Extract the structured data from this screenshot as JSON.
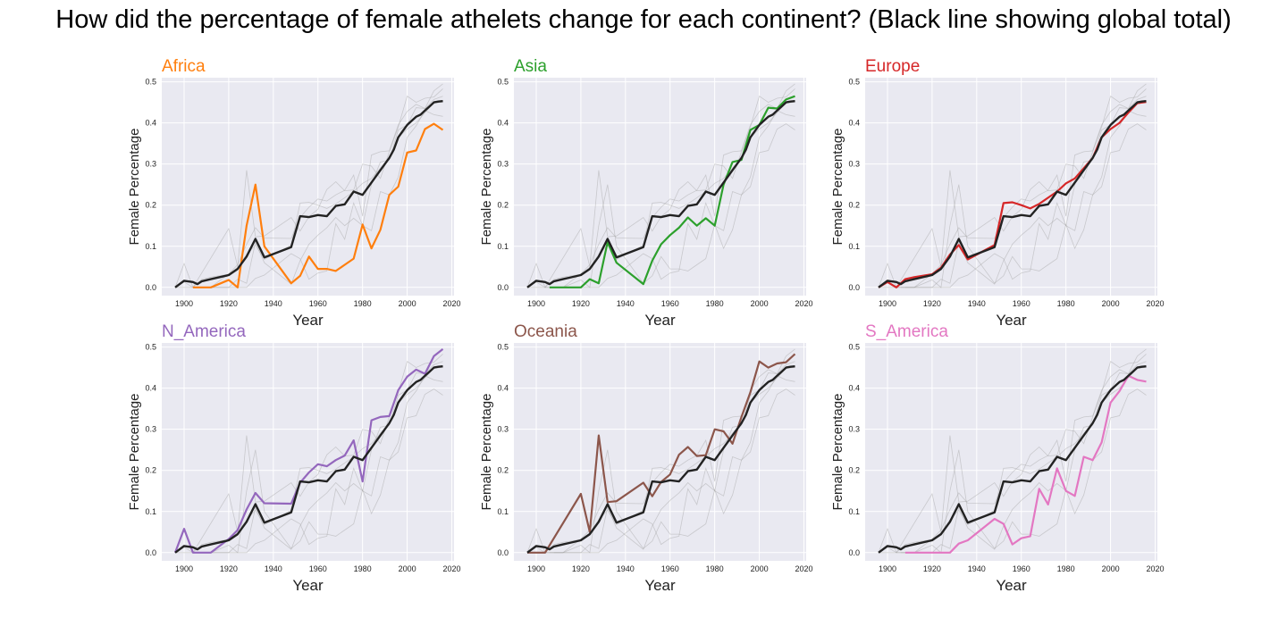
{
  "title": "How did the percentage of female athelets change for each continent? (Black line showing global total)",
  "chart_data": {
    "type": "line",
    "xlabel": "Year",
    "ylabel": "Female Percentage",
    "xlim": [
      1890,
      2021
    ],
    "ylim": [
      -0.02,
      0.51
    ],
    "xticks": [
      1900,
      1920,
      1940,
      1960,
      1980,
      2000,
      2020
    ],
    "yticks": [
      0.0,
      0.1,
      0.2,
      0.3,
      0.4,
      0.5
    ],
    "grid": true,
    "background": "#e9e9f1",
    "global": {
      "name": "Global",
      "color": "#222222",
      "x": [
        1896,
        1900,
        1904,
        1906,
        1908,
        1912,
        1920,
        1924,
        1928,
        1932,
        1936,
        1948,
        1952,
        1956,
        1960,
        1964,
        1968,
        1972,
        1976,
        1980,
        1984,
        1988,
        1992,
        1994,
        1996,
        1998,
        2000,
        2002,
        2004,
        2006,
        2008,
        2010,
        2012,
        2014,
        2016
      ],
      "y": [
        0.0,
        0.016,
        0.013,
        0.008,
        0.015,
        0.02,
        0.03,
        0.045,
        0.075,
        0.118,
        0.073,
        0.098,
        0.173,
        0.171,
        0.176,
        0.173,
        0.198,
        0.202,
        0.233,
        0.225,
        0.255,
        0.285,
        0.315,
        0.335,
        0.365,
        0.38,
        0.395,
        0.405,
        0.415,
        0.42,
        0.43,
        0.44,
        0.45,
        0.452,
        0.453
      ]
    },
    "panels": [
      {
        "name": "Africa",
        "color": "#ff7f0e",
        "x": [
          1904,
          1908,
          1912,
          1920,
          1924,
          1928,
          1932,
          1936,
          1948,
          1952,
          1956,
          1960,
          1964,
          1968,
          1972,
          1976,
          1980,
          1984,
          1988,
          1992,
          1996,
          2000,
          2004,
          2008,
          2012,
          2016
        ],
        "y": [
          0.0,
          0.0,
          0.0,
          0.018,
          0.0,
          0.15,
          0.25,
          0.1,
          0.01,
          0.028,
          0.075,
          0.045,
          0.045,
          0.04,
          0.055,
          0.07,
          0.153,
          0.095,
          0.14,
          0.225,
          0.245,
          0.328,
          0.333,
          0.385,
          0.398,
          0.383
        ]
      },
      {
        "name": "Asia",
        "color": "#2ca02c",
        "x": [
          1906,
          1912,
          1920,
          1924,
          1928,
          1932,
          1936,
          1948,
          1952,
          1956,
          1960,
          1964,
          1968,
          1972,
          1976,
          1980,
          1984,
          1988,
          1992,
          1996,
          2000,
          2004,
          2008,
          2012,
          2016
        ],
        "y": [
          0.0,
          0.0,
          0.0,
          0.02,
          0.01,
          0.11,
          0.06,
          0.008,
          0.065,
          0.105,
          0.127,
          0.145,
          0.17,
          0.15,
          0.168,
          0.15,
          0.25,
          0.305,
          0.31,
          0.383,
          0.395,
          0.437,
          0.435,
          0.457,
          0.465
        ]
      },
      {
        "name": "Europe",
        "color": "#d62728",
        "x": [
          1896,
          1900,
          1904,
          1908,
          1912,
          1920,
          1924,
          1928,
          1932,
          1936,
          1948,
          1952,
          1956,
          1960,
          1964,
          1968,
          1972,
          1976,
          1980,
          1984,
          1988,
          1992,
          1996,
          2000,
          2004,
          2008,
          2012,
          2016
        ],
        "y": [
          0.0,
          0.013,
          0.0,
          0.02,
          0.025,
          0.032,
          0.048,
          0.08,
          0.103,
          0.068,
          0.103,
          0.205,
          0.207,
          0.2,
          0.192,
          0.203,
          0.218,
          0.233,
          0.253,
          0.265,
          0.29,
          0.315,
          0.365,
          0.385,
          0.4,
          0.425,
          0.448,
          0.451
        ]
      },
      {
        "name": "N_America",
        "color": "#9467bd",
        "x": [
          1896,
          1900,
          1904,
          1908,
          1912,
          1920,
          1924,
          1928,
          1932,
          1936,
          1948,
          1952,
          1956,
          1960,
          1964,
          1968,
          1972,
          1976,
          1980,
          1984,
          1988,
          1992,
          1996,
          2000,
          2004,
          2008,
          2012,
          2016
        ],
        "y": [
          0.0,
          0.058,
          0.0,
          0.0,
          0.0,
          0.033,
          0.055,
          0.105,
          0.145,
          0.12,
          0.119,
          0.17,
          0.195,
          0.215,
          0.21,
          0.225,
          0.236,
          0.273,
          0.173,
          0.322,
          0.33,
          0.332,
          0.395,
          0.428,
          0.445,
          0.435,
          0.478,
          0.495
        ]
      },
      {
        "name": "Oceania",
        "color": "#8c564b",
        "x": [
          1896,
          1900,
          1904,
          1920,
          1924,
          1928,
          1932,
          1936,
          1948,
          1952,
          1956,
          1960,
          1964,
          1968,
          1972,
          1976,
          1980,
          1984,
          1988,
          1992,
          1996,
          2000,
          2004,
          2008,
          2012,
          2016
        ],
        "y": [
          0.0,
          0.0,
          0.0,
          0.143,
          0.05,
          0.285,
          0.123,
          0.125,
          0.17,
          0.137,
          0.172,
          0.19,
          0.238,
          0.257,
          0.235,
          0.237,
          0.3,
          0.295,
          0.265,
          0.33,
          0.39,
          0.465,
          0.45,
          0.46,
          0.463,
          0.483
        ]
      },
      {
        "name": "S_America",
        "color": "#e377c2",
        "x": [
          1908,
          1912,
          1920,
          1924,
          1928,
          1932,
          1936,
          1948,
          1952,
          1956,
          1960,
          1964,
          1968,
          1972,
          1976,
          1980,
          1984,
          1988,
          1992,
          1996,
          2000,
          2004,
          2008,
          2012,
          2016
        ],
        "y": [
          0.0,
          0.0,
          0.0,
          0.0,
          0.0,
          0.022,
          0.03,
          0.082,
          0.07,
          0.02,
          0.035,
          0.04,
          0.155,
          0.117,
          0.205,
          0.15,
          0.138,
          0.233,
          0.225,
          0.268,
          0.365,
          0.393,
          0.43,
          0.42,
          0.416
        ]
      }
    ]
  }
}
